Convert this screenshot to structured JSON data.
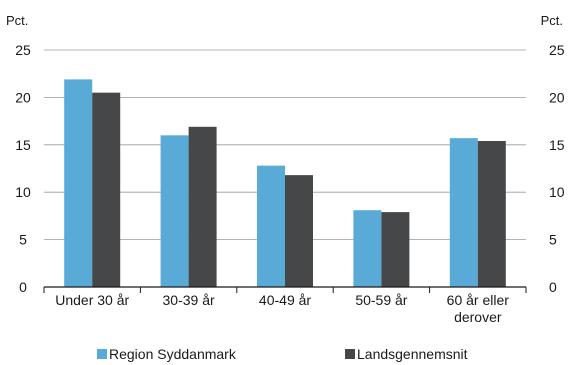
{
  "chart_data": {
    "type": "bar",
    "y_unit_left": "Pct.",
    "y_unit_right": "Pct.",
    "ylim": [
      0,
      25
    ],
    "y_ticks": [
      "0",
      "5",
      "10",
      "15",
      "20",
      "25"
    ],
    "grid": true,
    "categories": [
      [
        "Under 30 år"
      ],
      [
        "30-39 år"
      ],
      [
        "40-49 år"
      ],
      [
        "50-59 år"
      ],
      [
        "60 år eller",
        "derover"
      ]
    ],
    "series": [
      {
        "name": "Region Syddanmark",
        "color": "#5aaad8",
        "values": [
          21.9,
          16.0,
          12.8,
          8.1,
          15.7
        ]
      },
      {
        "name": "Landsgennemsnit",
        "color": "#454749",
        "values": [
          20.5,
          16.9,
          11.8,
          7.9,
          15.4
        ]
      }
    ],
    "legend_position": "bottom"
  }
}
